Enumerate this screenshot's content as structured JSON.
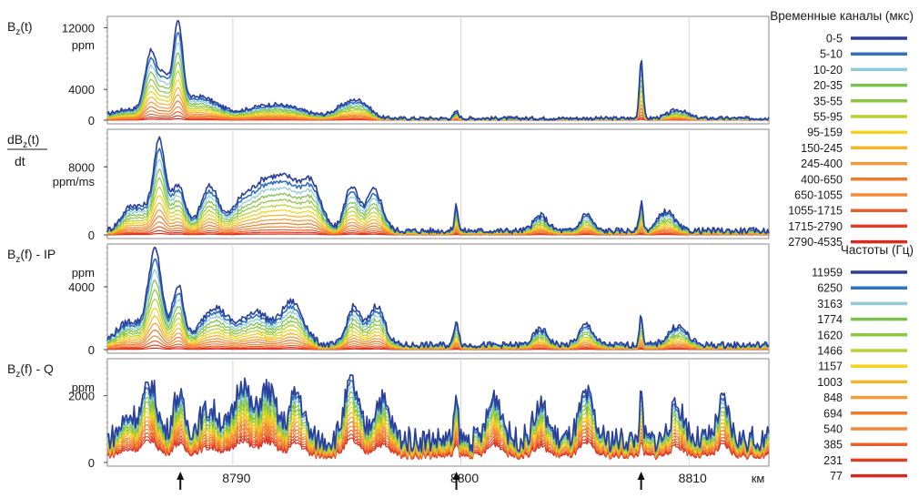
{
  "legend_time": {
    "title": "Временные каналы (мкс)",
    "entries": [
      {
        "label": "0-5",
        "color": "#2b3f9a"
      },
      {
        "label": "5-10",
        "color": "#2f72c0"
      },
      {
        "label": "10-20",
        "color": "#8fcad8"
      },
      {
        "label": "20-35",
        "color": "#7bc04a"
      },
      {
        "label": "35-55",
        "color": "#8dc63f"
      },
      {
        "label": "55-95",
        "color": "#b8d235"
      },
      {
        "label": "95-159",
        "color": "#f7d21a"
      },
      {
        "label": "150-245",
        "color": "#f7b42a"
      },
      {
        "label": "245-400",
        "color": "#f39a3a"
      },
      {
        "label": "400-650",
        "color": "#ef7a2a"
      },
      {
        "label": "650-1055",
        "color": "#f28a3a"
      },
      {
        "label": "1055-1715",
        "color": "#eb5e2b"
      },
      {
        "label": "1715-2790",
        "color": "#e43d26"
      },
      {
        "label": "2790-4535",
        "color": "#d92a20"
      }
    ]
  },
  "legend_freq": {
    "title": "Частоты (Гц)",
    "entries": [
      {
        "label": "11959",
        "color": "#2b3f9a"
      },
      {
        "label": "6250",
        "color": "#2f72c0"
      },
      {
        "label": "3163",
        "color": "#8fcad8"
      },
      {
        "label": "1774",
        "color": "#7bc04a"
      },
      {
        "label": "1620",
        "color": "#8dc63f"
      },
      {
        "label": "1466",
        "color": "#b8d235"
      },
      {
        "label": "1157",
        "color": "#f7d21a"
      },
      {
        "label": "1003",
        "color": "#f7b42a"
      },
      {
        "label": "848",
        "color": "#f39a3a"
      },
      {
        "label": "694",
        "color": "#ef7a2a"
      },
      {
        "label": "540",
        "color": "#f28a3a"
      },
      {
        "label": "385",
        "color": "#eb5e2b"
      },
      {
        "label": "231",
        "color": "#e43d26"
      },
      {
        "label": "77",
        "color": "#d92a20"
      }
    ]
  },
  "xaxis": {
    "unit": "км",
    "ticks": [
      {
        "label": "8790",
        "value": 8790
      },
      {
        "label": "8800",
        "value": 8800
      },
      {
        "label": "8810",
        "value": 8810
      }
    ],
    "xlim": [
      8784.5,
      8813.5
    ],
    "arrows_km": [
      8787.7,
      8799.8,
      8807.9
    ]
  },
  "chart_data": [
    {
      "type": "line",
      "ylabel": "B",
      "ylabel_sub": "z",
      "ylabel_tail": "(t)",
      "yunit": "ppm",
      "ylim": [
        0,
        13000
      ],
      "yticks": [
        {
          "label": "12000",
          "value": 12000
        },
        {
          "label": "4000",
          "value": 4000
        },
        {
          "label": "0",
          "value": 0
        }
      ],
      "peaks": [
        {
          "x": 8785.5,
          "a": 1200,
          "w": 0.8
        },
        {
          "x": 8786.4,
          "a": 7800,
          "w": 0.25
        },
        {
          "x": 8787.0,
          "a": 4800,
          "w": 0.25
        },
        {
          "x": 8787.6,
          "a": 10800,
          "w": 0.2
        },
        {
          "x": 8788.5,
          "a": 2800,
          "w": 0.8
        },
        {
          "x": 8791.8,
          "a": 1800,
          "w": 1.2
        },
        {
          "x": 8795.0,
          "a": 1700,
          "w": 0.5
        },
        {
          "x": 8795.7,
          "a": 1500,
          "w": 0.4
        },
        {
          "x": 8799.8,
          "a": 900,
          "w": 0.1
        },
        {
          "x": 8807.9,
          "a": 7800,
          "w": 0.08
        },
        {
          "x": 8809.5,
          "a": 1100,
          "w": 0.4
        }
      ],
      "baseline": 250
    },
    {
      "type": "line",
      "ylabel": "dB",
      "ylabel_sub": "z",
      "ylabel_tail": "(t)",
      "ylabel_den": "dt",
      "yunit": "ppm/ms",
      "ylim": [
        0,
        12000
      ],
      "yticks": [
        {
          "label": "8000",
          "value": 8000
        },
        {
          "label": "0",
          "value": 0
        }
      ],
      "peaks": [
        {
          "x": 8785.5,
          "a": 2600,
          "w": 0.4
        },
        {
          "x": 8786.3,
          "a": 2200,
          "w": 0.4
        },
        {
          "x": 8786.8,
          "a": 9600,
          "w": 0.25
        },
        {
          "x": 8787.6,
          "a": 5400,
          "w": 0.3
        },
        {
          "x": 8789.0,
          "a": 5200,
          "w": 0.4
        },
        {
          "x": 8790.3,
          "a": 2500,
          "w": 0.4
        },
        {
          "x": 8791.3,
          "a": 5200,
          "w": 0.6
        },
        {
          "x": 8792.5,
          "a": 5400,
          "w": 0.6
        },
        {
          "x": 8793.5,
          "a": 4500,
          "w": 0.4
        },
        {
          "x": 8795.2,
          "a": 5200,
          "w": 0.3
        },
        {
          "x": 8796.2,
          "a": 4800,
          "w": 0.35
        },
        {
          "x": 8799.8,
          "a": 3000,
          "w": 0.08
        },
        {
          "x": 8803.5,
          "a": 1800,
          "w": 0.3
        },
        {
          "x": 8805.5,
          "a": 2000,
          "w": 0.25
        },
        {
          "x": 8807.9,
          "a": 3300,
          "w": 0.08
        },
        {
          "x": 8809.0,
          "a": 2300,
          "w": 0.35
        }
      ],
      "baseline": 500
    },
    {
      "type": "line",
      "ylabel": "B",
      "ylabel_sub": "z",
      "ylabel_tail": "(f) - IP",
      "yunit": "ppm",
      "ylim": [
        0,
        6500
      ],
      "yticks": [
        {
          "label": "4000",
          "value": 4000
        },
        {
          "label": "0",
          "value": 0
        }
      ],
      "peaks": [
        {
          "x": 8785.5,
          "a": 1500,
          "w": 0.6
        },
        {
          "x": 8786.6,
          "a": 5800,
          "w": 0.3
        },
        {
          "x": 8787.6,
          "a": 3700,
          "w": 0.25
        },
        {
          "x": 8789.2,
          "a": 2400,
          "w": 0.6
        },
        {
          "x": 8791.0,
          "a": 2100,
          "w": 0.6
        },
        {
          "x": 8792.6,
          "a": 2700,
          "w": 0.5
        },
        {
          "x": 8795.3,
          "a": 2400,
          "w": 0.3
        },
        {
          "x": 8796.3,
          "a": 2500,
          "w": 0.35
        },
        {
          "x": 8799.8,
          "a": 1600,
          "w": 0.1
        },
        {
          "x": 8803.5,
          "a": 1000,
          "w": 0.3
        },
        {
          "x": 8805.5,
          "a": 1300,
          "w": 0.3
        },
        {
          "x": 8807.9,
          "a": 1800,
          "w": 0.08
        },
        {
          "x": 8809.5,
          "a": 1200,
          "w": 0.4
        }
      ],
      "baseline": 300
    },
    {
      "type": "line",
      "ylabel": "B",
      "ylabel_sub": "z",
      "ylabel_tail": "(f) - Q",
      "yunit": "ppm",
      "ylim": [
        0,
        3000
      ],
      "yticks": [
        {
          "label": "2000",
          "value": 2000
        },
        {
          "label": "0",
          "value": 0
        }
      ],
      "peaks": [
        {
          "x": 8785.5,
          "a": 700,
          "w": 0.4
        },
        {
          "x": 8786.4,
          "a": 1600,
          "w": 0.3
        },
        {
          "x": 8787.6,
          "a": 1300,
          "w": 0.25
        },
        {
          "x": 8789.0,
          "a": 900,
          "w": 0.5
        },
        {
          "x": 8790.4,
          "a": 1700,
          "w": 0.3
        },
        {
          "x": 8791.5,
          "a": 1500,
          "w": 0.4
        },
        {
          "x": 8792.8,
          "a": 1400,
          "w": 0.3
        },
        {
          "x": 8795.2,
          "a": 1700,
          "w": 0.3
        },
        {
          "x": 8796.5,
          "a": 1200,
          "w": 0.35
        },
        {
          "x": 8799.8,
          "a": 1200,
          "w": 0.08
        },
        {
          "x": 8801.5,
          "a": 1300,
          "w": 0.3
        },
        {
          "x": 8803.5,
          "a": 1000,
          "w": 0.3
        },
        {
          "x": 8805.5,
          "a": 1300,
          "w": 0.3
        },
        {
          "x": 8807.9,
          "a": 1200,
          "w": 0.08
        },
        {
          "x": 8809.5,
          "a": 1000,
          "w": 0.3
        },
        {
          "x": 8811.5,
          "a": 1100,
          "w": 0.25
        }
      ],
      "baseline": 700,
      "inverted_color_order": true
    }
  ]
}
